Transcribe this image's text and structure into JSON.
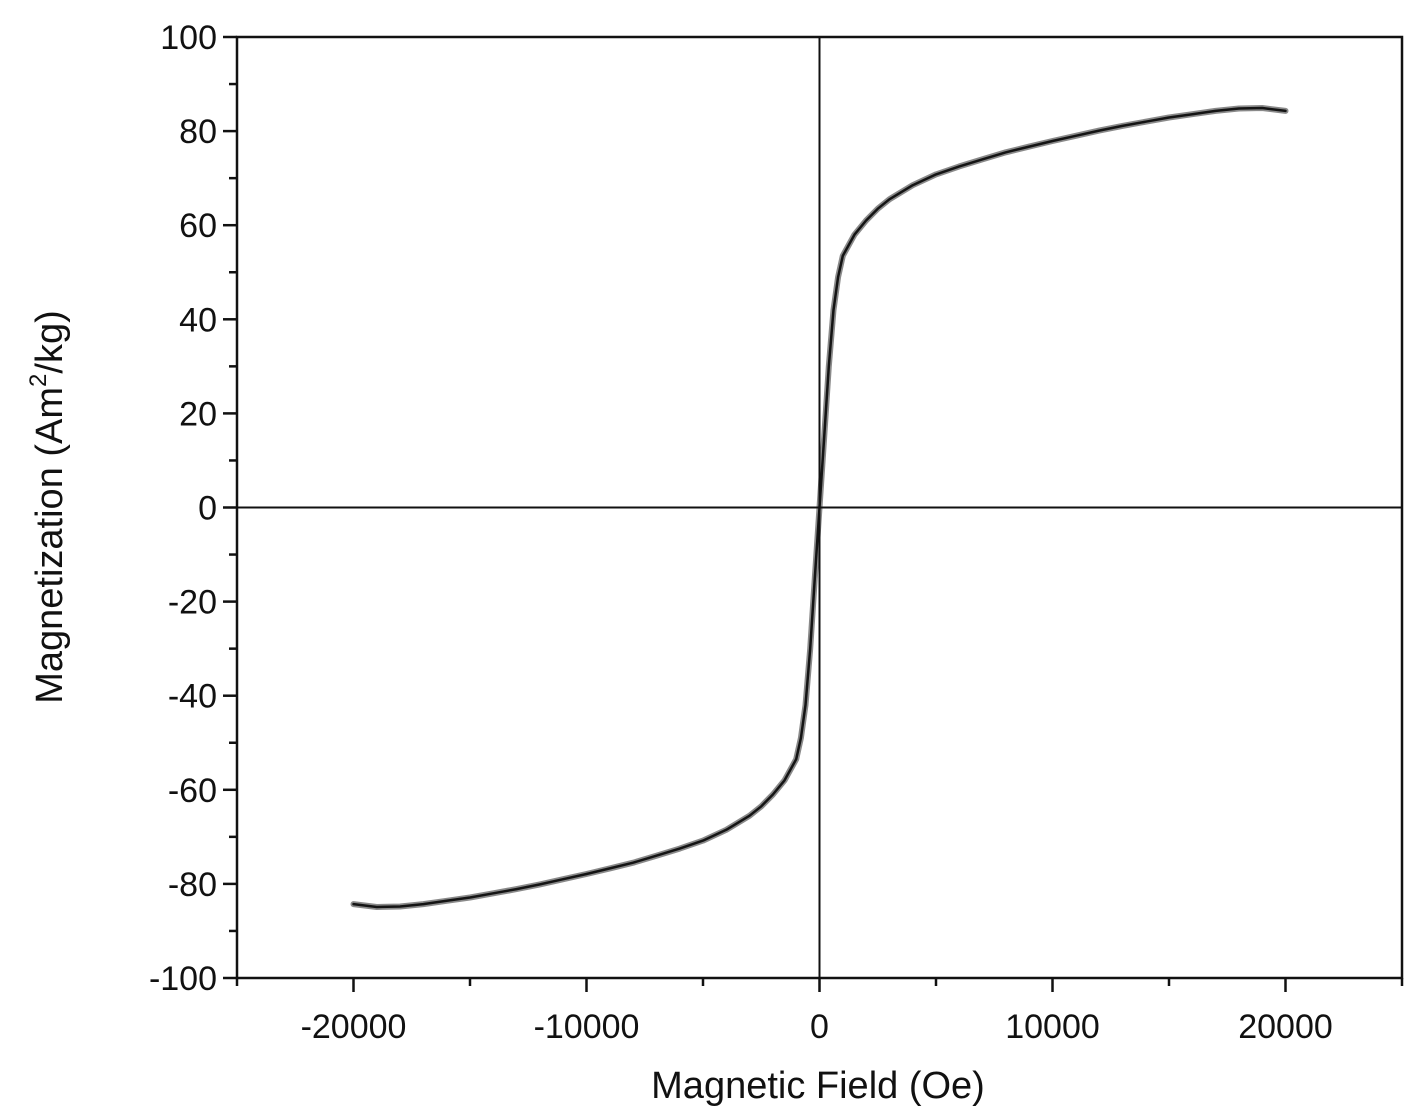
{
  "chart_data": {
    "type": "line",
    "title": "",
    "xlabel": "Magnetic Field (Oe)",
    "ylabel_main": "Magnetization (Am",
    "ylabel_sup": "2",
    "ylabel_tail": "/kg)",
    "xlim": [
      -25000,
      25000
    ],
    "ylim": [
      -100,
      100
    ],
    "x_ticks": [
      -20000,
      -10000,
      0,
      10000,
      20000
    ],
    "x_tick_labels": [
      "-20000",
      "-10000",
      "0",
      "10000",
      "20000"
    ],
    "x_minor_step": 5000,
    "y_ticks": [
      -100,
      -80,
      -60,
      -40,
      -20,
      0,
      20,
      40,
      60,
      80,
      100
    ],
    "y_tick_labels": [
      "-100",
      "-80",
      "-60",
      "-40",
      "-20",
      "0",
      "20",
      "40",
      "60",
      "80",
      "100"
    ],
    "y_minor_step": 10,
    "grid": false,
    "zero_lines": true,
    "colors": {
      "outer": "#8a8a8a",
      "inner": "#141414",
      "axes": "#111111"
    },
    "series": [
      {
        "x": [
          -20000,
          -19000,
          -18000,
          -17000,
          -16000,
          -15000,
          -14000,
          -13000,
          -12000,
          -11000,
          -10000,
          -9000,
          -8000,
          -7000,
          -6000,
          -5000,
          -4000,
          -3000,
          -2500,
          -2000,
          -1500,
          -1000,
          -800,
          -600,
          -400,
          -200,
          0,
          200,
          400,
          600,
          800,
          1000,
          1500,
          2000,
          2500,
          3000,
          4000,
          5000,
          6000,
          7000,
          8000,
          9000,
          10000,
          11000,
          12000,
          13000,
          14000,
          15000,
          16000,
          17000,
          18000,
          19000,
          20000
        ],
        "y": [
          -84.3,
          -84.9,
          -84.8,
          -84.3,
          -83.6,
          -82.9,
          -82.0,
          -81.1,
          -80.1,
          -79.0,
          -77.9,
          -76.7,
          -75.5,
          -74.0,
          -72.5,
          -70.8,
          -68.5,
          -65.5,
          -63.5,
          -61.0,
          -58.0,
          -53.5,
          -49.0,
          -42.0,
          -30.0,
          -15.0,
          0.0,
          15.0,
          30.0,
          42.0,
          49.0,
          53.5,
          58.0,
          61.0,
          63.5,
          65.5,
          68.5,
          70.8,
          72.5,
          74.0,
          75.5,
          76.7,
          77.9,
          79.0,
          80.1,
          81.1,
          82.0,
          82.9,
          83.6,
          84.3,
          84.8,
          84.9,
          84.3
        ]
      }
    ]
  }
}
